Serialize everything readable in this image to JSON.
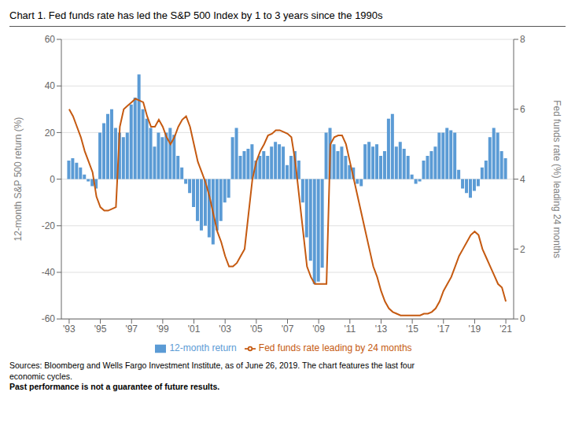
{
  "chart_data": {
    "type": "bar",
    "title": "Chart 1. Fed funds rate has led the S&P 500 Index by 1 to 3 years since the 1990s",
    "ylabel": "12-month S&P 500 return (%)",
    "y2label": "Fed funds rate (%) leading 24 months",
    "annotations": [
      "Sources: Bloomberg and Wells Fargo Investment Institute, as of June 26, 2019. The chart features the last four\neconomic cycles. ",
      "Past performance is not a guarantee of future results."
    ],
    "x": [
      1993.0,
      1993.25,
      1993.5,
      1993.75,
      1994.0,
      1994.25,
      1994.5,
      1994.75,
      1995.0,
      1995.25,
      1995.5,
      1995.75,
      1996.0,
      1996.25,
      1996.5,
      1996.75,
      1997.0,
      1997.25,
      1997.5,
      1997.75,
      1998.0,
      1998.25,
      1998.5,
      1998.75,
      1999.0,
      1999.25,
      1999.5,
      1999.75,
      2000.0,
      2000.25,
      2000.5,
      2000.75,
      2001.0,
      2001.25,
      2001.5,
      2001.75,
      2002.0,
      2002.25,
      2002.5,
      2002.75,
      2003.0,
      2003.25,
      2003.5,
      2003.75,
      2004.0,
      2004.25,
      2004.5,
      2004.75,
      2005.0,
      2005.25,
      2005.5,
      2005.75,
      2006.0,
      2006.25,
      2006.5,
      2006.75,
      2007.0,
      2007.25,
      2007.5,
      2007.75,
      2008.0,
      2008.25,
      2008.5,
      2008.75,
      2009.0,
      2009.25,
      2009.5,
      2009.75,
      2010.0,
      2010.25,
      2010.5,
      2010.75,
      2011.0,
      2011.25,
      2011.5,
      2011.75,
      2012.0,
      2012.25,
      2012.5,
      2012.75,
      2013.0,
      2013.25,
      2013.5,
      2013.75,
      2014.0,
      2014.25,
      2014.5,
      2014.75,
      2015.0,
      2015.25,
      2015.5,
      2015.75,
      2016.0,
      2016.25,
      2016.5,
      2016.75,
      2017.0,
      2017.25,
      2017.5,
      2017.75,
      2018.0,
      2018.25,
      2018.5,
      2018.75,
      2019.0,
      2019.25,
      2019.5,
      2019.75,
      2020.0,
      2020.25,
      2020.5,
      2020.75,
      2021.0
    ],
    "series": [
      {
        "name": "12-month return",
        "type": "bar",
        "color": "#5B9BD5",
        "values": [
          8,
          9,
          7,
          5,
          2,
          -1,
          -3,
          -4,
          20,
          24,
          28,
          30,
          22,
          20,
          18,
          20,
          32,
          35,
          45,
          30,
          26,
          22,
          14,
          20,
          18,
          20,
          22,
          19,
          10,
          5,
          -2,
          -6,
          -12,
          -18,
          -22,
          -20,
          -25,
          -28,
          -22,
          -18,
          -10,
          -8,
          18,
          22,
          10,
          12,
          13,
          15,
          8,
          10,
          12,
          10,
          14,
          16,
          15,
          14,
          6,
          10,
          12,
          8,
          -10,
          -25,
          -35,
          -45,
          -44,
          -38,
          20,
          22,
          15,
          12,
          14,
          10,
          6,
          5,
          -2,
          -3,
          15,
          16,
          14,
          15,
          10,
          12,
          26,
          28,
          14,
          16,
          13,
          10,
          2,
          -2,
          -1,
          8,
          10,
          12,
          14,
          20,
          20,
          22,
          21,
          20,
          4,
          -4,
          -6,
          -8,
          -5,
          -3,
          5,
          8,
          18,
          22,
          20,
          12,
          9
        ]
      },
      {
        "name": "Fed funds rate leading by 24 months",
        "type": "line",
        "axis": "y2",
        "color": "#C55A11",
        "values": [
          6.0,
          5.8,
          5.5,
          5.2,
          4.8,
          4.5,
          4.2,
          3.5,
          3.2,
          3.1,
          3.1,
          3.15,
          3.2,
          5.5,
          6.0,
          6.1,
          6.2,
          6.3,
          6.25,
          6.2,
          5.8,
          5.5,
          5.5,
          5.7,
          5.5,
          5.2,
          5.0,
          5.2,
          5.5,
          5.7,
          5.8,
          5.5,
          5.0,
          4.5,
          4.2,
          3.9,
          3.5,
          3.0,
          2.5,
          2.2,
          1.8,
          1.5,
          1.5,
          1.6,
          1.8,
          2.0,
          3.0,
          4.0,
          4.5,
          4.8,
          5.0,
          5.25,
          5.3,
          5.4,
          5.4,
          5.35,
          5.3,
          5.2,
          4.5,
          3.5,
          2.5,
          1.5,
          1.2,
          1.0,
          1.0,
          1.0,
          1.0,
          5.0,
          5.2,
          5.25,
          5.25,
          5.0,
          4.5,
          4.0,
          3.5,
          3.0,
          2.5,
          2.0,
          1.5,
          1.2,
          0.8,
          0.5,
          0.3,
          0.2,
          0.15,
          0.1,
          0.1,
          0.1,
          0.1,
          0.1,
          0.1,
          0.15,
          0.15,
          0.2,
          0.3,
          0.5,
          0.8,
          1.0,
          1.2,
          1.5,
          1.8,
          2.0,
          2.2,
          2.4,
          2.5,
          2.4,
          2.0,
          1.75,
          1.5,
          1.25,
          1.0,
          0.9,
          0.5
        ]
      }
    ],
    "xlim": [
      1992.5,
      2021.5
    ],
    "xticks": [
      {
        "value": 1993,
        "label": "'93"
      },
      {
        "value": 1995,
        "label": "'95"
      },
      {
        "value": 1997,
        "label": "'97"
      },
      {
        "value": 1999,
        "label": "'99"
      },
      {
        "value": 2001,
        "label": "'01"
      },
      {
        "value": 2003,
        "label": "'03"
      },
      {
        "value": 2005,
        "label": "'05"
      },
      {
        "value": 2007,
        "label": "'07"
      },
      {
        "value": 2009,
        "label": "'09"
      },
      {
        "value": 2011,
        "label": "'11"
      },
      {
        "value": 2013,
        "label": "'13"
      },
      {
        "value": 2015,
        "label": "'15"
      },
      {
        "value": 2017,
        "label": "'17"
      },
      {
        "value": 2019,
        "label": "'19"
      },
      {
        "value": 2021,
        "label": "'21"
      }
    ],
    "ylim": [
      -60,
      60
    ],
    "yticks": [
      -60,
      -40,
      -20,
      0,
      20,
      40,
      60
    ],
    "y2lim": [
      0,
      8
    ],
    "y2ticks": [
      0,
      2,
      4,
      6,
      8
    ],
    "grid": true,
    "legend": "bottom"
  }
}
